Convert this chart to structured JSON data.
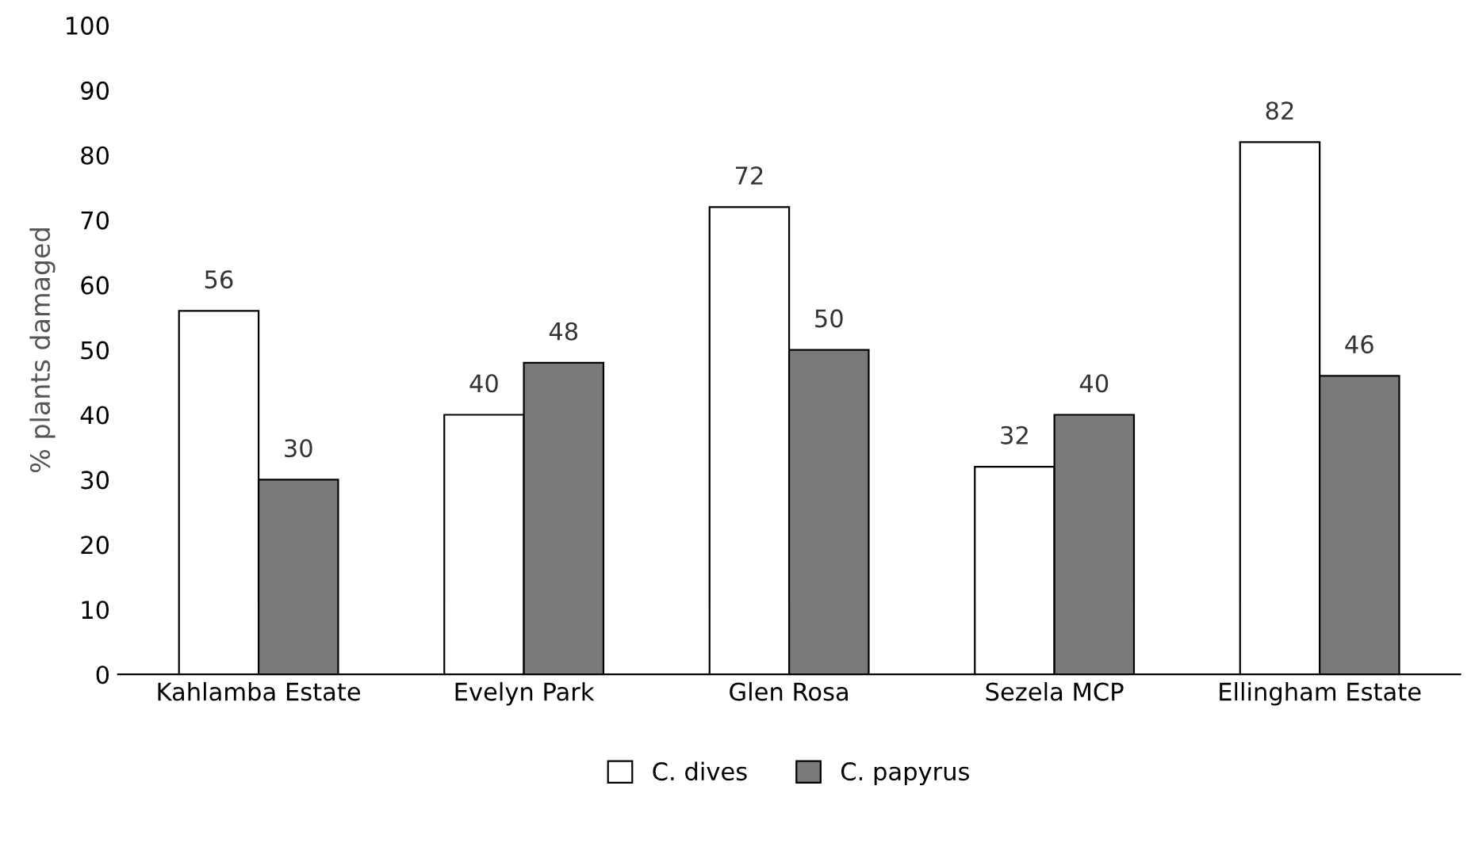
{
  "chart_data": {
    "type": "bar",
    "ylabel": "% plants damaged",
    "categories": [
      "Kahlamba Estate",
      "Evelyn Park",
      "Glen Rosa",
      "Sezela MCP",
      "Ellingham Estate"
    ],
    "series": [
      {
        "name": "C. dives",
        "color": "#ffffff",
        "values": [
          56,
          40,
          72,
          32,
          82
        ]
      },
      {
        "name": "C. papyrus",
        "color": "#7a7a7a",
        "values": [
          30,
          48,
          50,
          40,
          46
        ]
      }
    ],
    "ylim": [
      0,
      100
    ],
    "yticks": [
      0,
      10,
      20,
      30,
      40,
      50,
      60,
      70,
      80,
      90,
      100
    ],
    "data_labels": true,
    "grid": false,
    "legend": "bottom"
  }
}
